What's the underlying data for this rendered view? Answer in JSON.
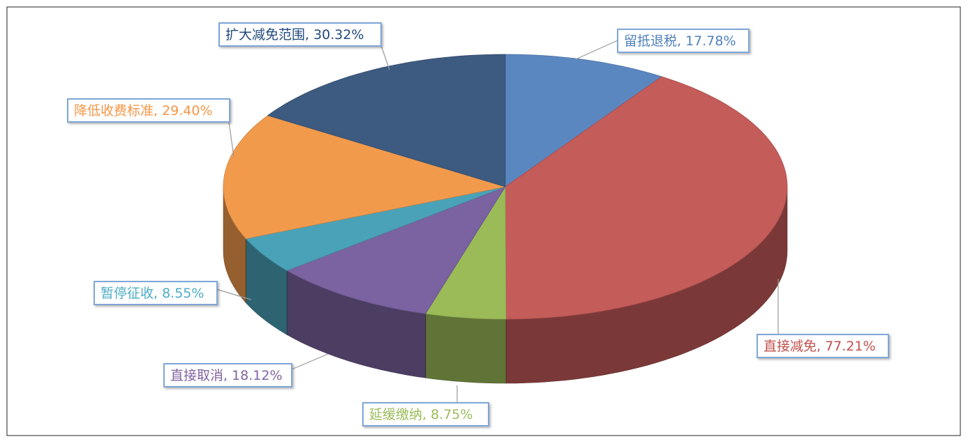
{
  "chart_data": {
    "type": "pie3d",
    "values": [
      17.78,
      77.21,
      8.75,
      18.12,
      8.55,
      29.4,
      30.32
    ],
    "value_labels": [
      "留抵退税, 17.78%",
      "直接减免, 77.21%",
      "延缓缴纳, 8.75%",
      "直接取消, 18.12%",
      "暂停征收, 8.55%",
      "降低收费标准, 29.40%",
      "扩大减免范围, 30.32%"
    ],
    "colors": [
      "#5b87c0",
      "#c45c5a",
      "#9bbb59",
      "#7b62a0",
      "#4aa2b8",
      "#f29a4c",
      "#3d5a80"
    ],
    "label_colors": [
      "#4f81bd",
      "#c0504d",
      "#9bbb59",
      "#8064a2",
      "#4bacc6",
      "#f79646",
      "#1f497d"
    ]
  }
}
